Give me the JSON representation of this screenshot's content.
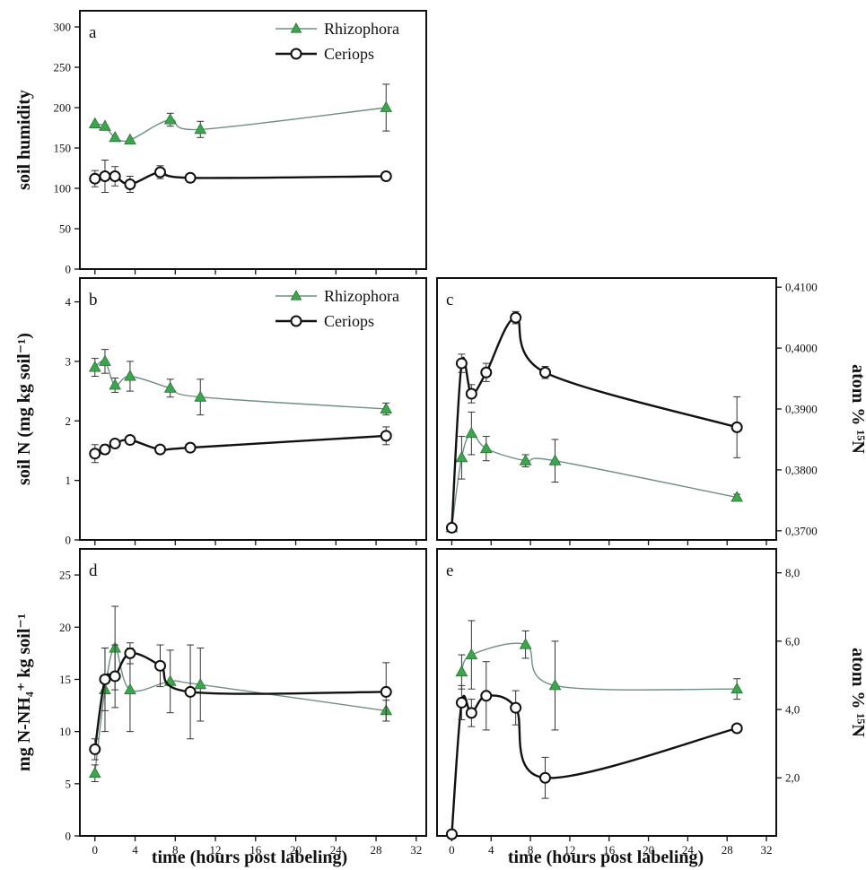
{
  "figure": {
    "xlabel": "time (hours post labeling)",
    "series_names": [
      "Rhizophora",
      "Ceriops"
    ],
    "colors": {
      "rhizophora_marker": "#3aa84a",
      "rhizophora_line": "#6f8f82",
      "ceriops_line": "#111111"
    }
  },
  "chart_data": [
    {
      "panel": "a",
      "type": "line",
      "ylabel": "soil humidity",
      "yaxis_side": "left",
      "ylim": [
        0,
        320
      ],
      "yticks": [
        0,
        50,
        100,
        150,
        200,
        250,
        300
      ],
      "xlim": [
        -1.5,
        33
      ],
      "xticks": [
        0,
        4,
        8,
        12,
        16,
        20,
        24,
        28,
        32
      ],
      "legend": "top-right",
      "series": [
        {
          "name": "Rhizophora",
          "marker": "triangle",
          "x": [
            0,
            1,
            2,
            3.5,
            7.5,
            10.5,
            29
          ],
          "y": [
            180,
            177,
            163,
            160,
            185,
            173,
            200
          ],
          "err": [
            0,
            0,
            0,
            0,
            8,
            10,
            29
          ]
        },
        {
          "name": "Ceriops",
          "marker": "circle",
          "x": [
            0,
            1,
            2,
            3.5,
            6.5,
            9.5,
            29
          ],
          "y": [
            112,
            115,
            115,
            105,
            120,
            113,
            115
          ],
          "err": [
            10,
            20,
            12,
            10,
            8,
            5,
            0
          ]
        }
      ]
    },
    {
      "panel": "b",
      "type": "line",
      "ylabel": "soil N (mg kg soil⁻¹)",
      "yaxis_side": "left",
      "ylim": [
        0,
        4.4
      ],
      "yticks": [
        0,
        1,
        2,
        3,
        4
      ],
      "xlim": [
        -1.5,
        33
      ],
      "xticks": [
        0,
        4,
        8,
        12,
        16,
        20,
        24,
        28,
        32
      ],
      "legend": "top-right",
      "series": [
        {
          "name": "Rhizophora",
          "marker": "triangle",
          "x": [
            0,
            1,
            2,
            3.5,
            7.5,
            10.5,
            29
          ],
          "y": [
            2.9,
            3.0,
            2.6,
            2.75,
            2.55,
            2.4,
            2.2
          ],
          "err": [
            0.15,
            0.2,
            0.12,
            0.25,
            0.15,
            0.3,
            0.1
          ]
        },
        {
          "name": "Ceriops",
          "marker": "circle",
          "x": [
            0,
            1,
            2,
            3.5,
            6.5,
            9.5,
            29
          ],
          "y": [
            1.45,
            1.52,
            1.62,
            1.68,
            1.52,
            1.55,
            1.75
          ],
          "err": [
            0.15,
            0.08,
            0.05,
            0.05,
            0.05,
            0.05,
            0.15
          ]
        }
      ]
    },
    {
      "panel": "c",
      "type": "line",
      "ylabel": "atom % ¹⁵N",
      "yaxis_side": "right",
      "ylim": [
        0.3685,
        0.4115
      ],
      "yticks": [
        0.37,
        0.38,
        0.39,
        0.4,
        0.41
      ],
      "ytick_labels": [
        "0,3700",
        "0,3800",
        "0,3900",
        "0,4000",
        "0,4100"
      ],
      "xlim": [
        -1.5,
        33
      ],
      "xticks": [
        0,
        4,
        8,
        12,
        16,
        20,
        24,
        28,
        32
      ],
      "series": [
        {
          "name": "Rhizophora",
          "marker": "triangle",
          "x": [
            0,
            1,
            2,
            3.5,
            7.5,
            10.5,
            29
          ],
          "y": [
            0.3705,
            0.382,
            0.386,
            0.3835,
            0.3815,
            0.3815,
            0.3755
          ],
          "err": [
            0,
            0.0035,
            0.0035,
            0.002,
            0.001,
            0.0035,
            0.0005
          ]
        },
        {
          "name": "Ceriops",
          "marker": "circle",
          "x": [
            0,
            1,
            2,
            3.5,
            6.5,
            9.5,
            29
          ],
          "y": [
            0.3705,
            0.3975,
            0.3925,
            0.396,
            0.405,
            0.396,
            0.387
          ],
          "err": [
            0,
            0.0015,
            0.0015,
            0.0015,
            0.001,
            0.001,
            0.005
          ]
        }
      ]
    },
    {
      "panel": "d",
      "type": "line",
      "ylabel": "mg N-NH₄⁺ kg soil⁻¹",
      "yaxis_side": "left",
      "ylim": [
        0,
        27.5
      ],
      "yticks": [
        0,
        5,
        10,
        15,
        20,
        25
      ],
      "xlim": [
        -1.5,
        33
      ],
      "xticks": [
        0,
        4,
        8,
        12,
        16,
        20,
        24,
        28,
        32
      ],
      "series": [
        {
          "name": "Rhizophora",
          "marker": "triangle",
          "x": [
            0,
            1,
            2,
            3.5,
            7.5,
            10.5,
            29
          ],
          "y": [
            6,
            14,
            18,
            14,
            14.8,
            14.5,
            12
          ],
          "err": [
            0.8,
            4,
            4,
            4,
            3,
            3.5,
            1
          ]
        },
        {
          "name": "Ceriops",
          "marker": "circle",
          "x": [
            0,
            1,
            2,
            3.5,
            6.5,
            9.5,
            29
          ],
          "y": [
            8.3,
            15,
            15.3,
            17.5,
            16.3,
            13.8,
            13.8
          ],
          "err": [
            1,
            3,
            3,
            1,
            2,
            4.5,
            2.8
          ]
        }
      ]
    },
    {
      "panel": "e",
      "type": "line",
      "ylabel": "atom % ¹⁵N",
      "yaxis_side": "right",
      "ylim": [
        0.3,
        8.7
      ],
      "yticks": [
        2,
        4,
        6,
        8
      ],
      "ytick_labels": [
        "2,0",
        "4,0",
        "6,0",
        "8,0"
      ],
      "xlim": [
        -1.5,
        33
      ],
      "xticks": [
        0,
        4,
        8,
        12,
        16,
        20,
        24,
        28,
        32
      ],
      "series": [
        {
          "name": "Rhizophora",
          "marker": "triangle",
          "x": [
            1,
            2,
            7.5,
            10.5,
            29
          ],
          "y": [
            5.1,
            5.6,
            5.9,
            4.7,
            4.6
          ],
          "err": [
            0.5,
            1.0,
            0.4,
            1.3,
            0.3
          ]
        },
        {
          "name": "Ceriops",
          "marker": "circle",
          "x": [
            0,
            1,
            2,
            3.5,
            6.5,
            9.5,
            29
          ],
          "y": [
            0.35,
            4.2,
            3.9,
            4.4,
            4.05,
            2.0,
            3.45
          ],
          "err": [
            0,
            0.5,
            0.4,
            1.0,
            0.5,
            0.6,
            0
          ]
        }
      ]
    }
  ]
}
